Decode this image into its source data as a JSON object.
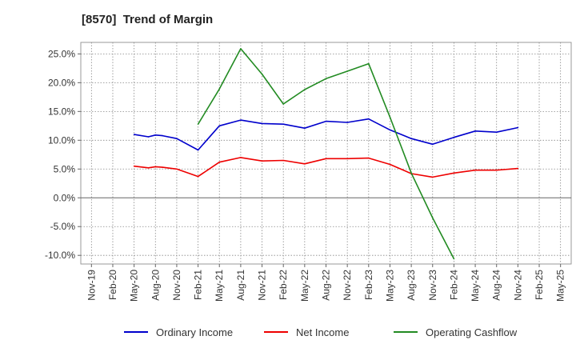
{
  "chart_data": {
    "type": "line",
    "title": "[8570]  Trend of Margin",
    "xlabel": "",
    "ylabel": "",
    "categories": [
      "Nov-19",
      "Feb-20",
      "May-20",
      "Aug-20",
      "Nov-20",
      "Feb-21",
      "May-21",
      "Aug-21",
      "Nov-21",
      "Feb-22",
      "May-22",
      "Aug-22",
      "Nov-22",
      "Feb-23",
      "May-23",
      "Aug-23",
      "Nov-23",
      "Feb-24",
      "May-24",
      "Aug-24",
      "Nov-24",
      "Feb-25",
      "May-25"
    ],
    "yticks": [
      -10,
      -5,
      0,
      5,
      10,
      15,
      20,
      25
    ],
    "ytick_labels": [
      "-10.0%",
      "-5.0%",
      "0.0%",
      "5.0%",
      "10.0%",
      "15.0%",
      "20.0%",
      "25.0%"
    ],
    "ylim": [
      -11.5,
      27
    ],
    "grid": true,
    "legend_position": "bottom",
    "series": [
      {
        "name": "Ordinary Income",
        "color": "#0000cc",
        "points": [
          {
            "x": 2.0,
            "y": 11.0
          },
          {
            "x": 2.67,
            "y": 10.6
          },
          {
            "x": 3.0,
            "y": 10.9
          },
          {
            "x": 3.33,
            "y": 10.8
          },
          {
            "x": 4.0,
            "y": 10.3
          },
          {
            "x": 5.0,
            "y": 8.3
          },
          {
            "x": 6.0,
            "y": 12.5
          },
          {
            "x": 7.0,
            "y": 13.5
          },
          {
            "x": 8.0,
            "y": 12.9
          },
          {
            "x": 9.0,
            "y": 12.8
          },
          {
            "x": 10.0,
            "y": 12.1
          },
          {
            "x": 11.0,
            "y": 13.3
          },
          {
            "x": 12.0,
            "y": 13.1
          },
          {
            "x": 13.0,
            "y": 13.7
          },
          {
            "x": 14.0,
            "y": 11.8
          },
          {
            "x": 15.0,
            "y": 10.3
          },
          {
            "x": 16.0,
            "y": 9.3
          },
          {
            "x": 17.0,
            "y": 10.5
          },
          {
            "x": 18.0,
            "y": 11.6
          },
          {
            "x": 19.0,
            "y": 11.4
          },
          {
            "x": 20.0,
            "y": 12.2
          }
        ]
      },
      {
        "name": "Net Income",
        "color": "#ee0000",
        "points": [
          {
            "x": 2.0,
            "y": 5.5
          },
          {
            "x": 2.67,
            "y": 5.2
          },
          {
            "x": 3.0,
            "y": 5.4
          },
          {
            "x": 3.33,
            "y": 5.3
          },
          {
            "x": 4.0,
            "y": 5.0
          },
          {
            "x": 5.0,
            "y": 3.7
          },
          {
            "x": 6.0,
            "y": 6.2
          },
          {
            "x": 7.0,
            "y": 7.0
          },
          {
            "x": 8.0,
            "y": 6.4
          },
          {
            "x": 9.0,
            "y": 6.5
          },
          {
            "x": 10.0,
            "y": 5.9
          },
          {
            "x": 11.0,
            "y": 6.8
          },
          {
            "x": 12.0,
            "y": 6.8
          },
          {
            "x": 13.0,
            "y": 6.9
          },
          {
            "x": 14.0,
            "y": 5.8
          },
          {
            "x": 15.0,
            "y": 4.2
          },
          {
            "x": 16.0,
            "y": 3.6
          },
          {
            "x": 17.0,
            "y": 4.3
          },
          {
            "x": 18.0,
            "y": 4.8
          },
          {
            "x": 19.0,
            "y": 4.8
          },
          {
            "x": 20.0,
            "y": 5.1
          }
        ]
      },
      {
        "name": "Operating Cashflow",
        "color": "#228b22",
        "points": [
          {
            "x": 5.0,
            "y": 12.8
          },
          {
            "x": 6.0,
            "y": 18.9
          },
          {
            "x": 7.0,
            "y": 25.9
          },
          {
            "x": 8.0,
            "y": 21.5
          },
          {
            "x": 9.0,
            "y": 16.3
          },
          {
            "x": 10.0,
            "y": 18.8
          },
          {
            "x": 11.0,
            "y": 20.7
          },
          {
            "x": 12.0,
            "y": 22.0
          },
          {
            "x": 13.0,
            "y": 23.3
          },
          {
            "x": 14.0,
            "y": 14.0
          },
          {
            "x": 15.0,
            "y": 4.3
          },
          {
            "x": 16.0,
            "y": -3.5
          },
          {
            "x": 17.0,
            "y": -10.6
          }
        ]
      }
    ]
  }
}
